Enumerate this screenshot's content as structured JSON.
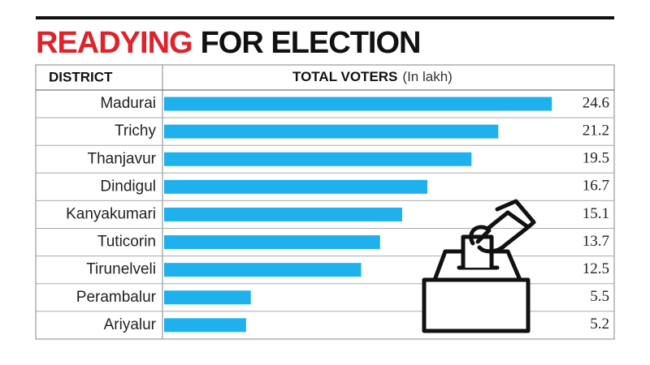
{
  "chart_data": {
    "type": "bar",
    "title_highlight": "READYING",
    "title": "FOR ELECTION",
    "category_header": "DISTRICT",
    "value_header": "TOTAL VOTERS",
    "value_unit": "(In lakh)",
    "categories": [
      "Madurai",
      "Trichy",
      "Thanjavur",
      "Dindigul",
      "Kanyakumari",
      "Tuticorin",
      "Tirunelveli",
      "Perambalur",
      "Ariyalur"
    ],
    "values": [
      24.6,
      21.2,
      19.5,
      16.7,
      15.1,
      13.7,
      12.5,
      5.5,
      5.2
    ],
    "color": "#1fb1ee",
    "title_highlight_color": "#e0222a"
  }
}
